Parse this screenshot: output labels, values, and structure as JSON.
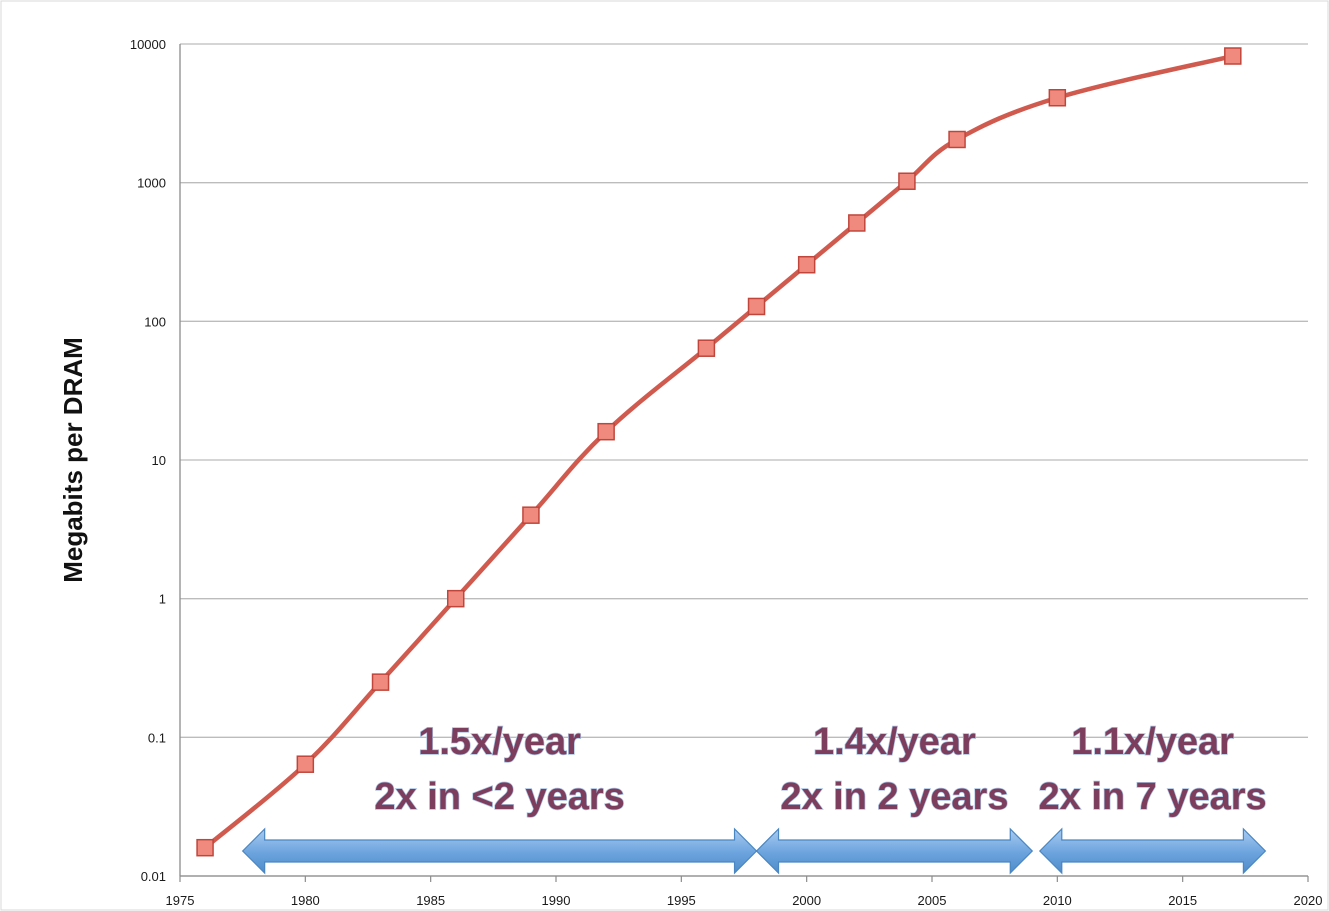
{
  "chart_data": {
    "type": "line",
    "title": "",
    "xlabel": "",
    "ylabel": "Megabits per DRAM",
    "y_scale": "log",
    "xlim": [
      1975,
      2020
    ],
    "ylim": [
      0.01,
      10000
    ],
    "grid": "horizontal",
    "legend": "none",
    "x_ticks": [
      "1975",
      "1980",
      "1985",
      "1990",
      "1995",
      "2000",
      "2005",
      "2010",
      "2015",
      "2020"
    ],
    "y_ticks": [
      "0.01",
      "0.1",
      "1",
      "10",
      "100",
      "1000",
      "10000"
    ],
    "series": [
      {
        "color": "#d05a4e",
        "marker_color": "#f08a7e",
        "points": [
          {
            "x": 1976,
            "y": 0.016
          },
          {
            "x": 1980,
            "y": 0.064
          },
          {
            "x": 1983,
            "y": 0.25
          },
          {
            "x": 1986,
            "y": 1
          },
          {
            "x": 1989,
            "y": 4
          },
          {
            "x": 1992,
            "y": 16
          },
          {
            "x": 1996,
            "y": 64
          },
          {
            "x": 1998,
            "y": 128
          },
          {
            "x": 2000,
            "y": 256
          },
          {
            "x": 2002,
            "y": 512
          },
          {
            "x": 2004,
            "y": 1024
          },
          {
            "x": 2006,
            "y": 2048
          },
          {
            "x": 2010,
            "y": 4096
          },
          {
            "x": 2017,
            "y": 8192
          }
        ]
      }
    ],
    "annotations": [
      {
        "line1": "1.5x/year",
        "line2": "2x in <2 years",
        "x_start": 1977.5,
        "x_end": 1998
      },
      {
        "line1": "1.4x/year",
        "line2": "2x in 2 years",
        "x_start": 1998,
        "x_end": 2009
      },
      {
        "line1": "1.1x/year",
        "line2": "2x in 7 years",
        "x_start": 2009.3,
        "x_end": 2018.3
      }
    ],
    "colors": {
      "line": "#d05a4e",
      "marker": "#f08a7e",
      "marker_edge": "#c0463c",
      "arrow": "#5b9bd5",
      "arrow_light": "#9cc3ea",
      "annotation_text": "#7d3d5c",
      "grid": "#bcbcbc"
    }
  }
}
